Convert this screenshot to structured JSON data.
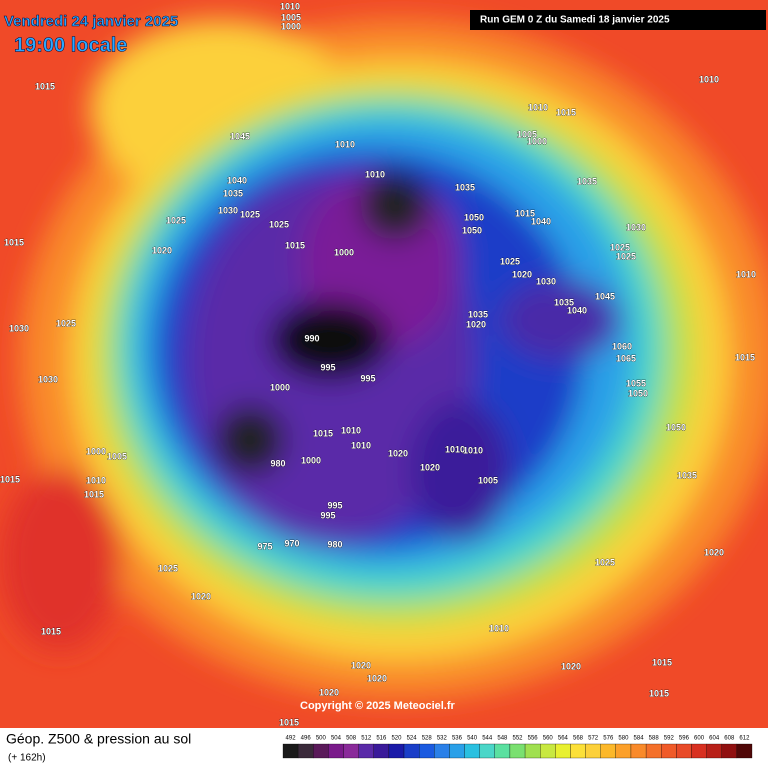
{
  "header": {
    "date": "Vendredi 24 janvier 2025",
    "time": "19:00 locale",
    "run": "Run GEM 0 Z du Samedi 18 janvier 2025"
  },
  "copyright": "Copyright © 2025 Meteociel.fr",
  "legend": {
    "title": "Géop. Z500 & pression au sol",
    "lead": "(+ 162h)",
    "values": [
      492,
      496,
      500,
      504,
      508,
      512,
      516,
      520,
      524,
      528,
      532,
      536,
      540,
      544,
      548,
      552,
      556,
      560,
      564,
      568,
      572,
      576,
      580,
      584,
      588,
      592,
      596,
      600,
      604,
      608,
      612
    ]
  },
  "pressure_labels": [
    "1010",
    "1005",
    "1000",
    "1015",
    "1045",
    "1010",
    "1015",
    "1005",
    "1000",
    "1010",
    "1010",
    "1010",
    "1035",
    "1035",
    "1040",
    "1035",
    "1030",
    "1025",
    "1025",
    "1025",
    "1050",
    "1015",
    "1040",
    "1050",
    "1030",
    "1015",
    "1020",
    "1015",
    "1000",
    "1025",
    "1025",
    "1025",
    "1020",
    "1030",
    "1010",
    "1035",
    "1045",
    "1040",
    "1035",
    "1020",
    "1025",
    "1030",
    "990",
    "1060",
    "1065",
    "1015",
    "995",
    "995",
    "1000",
    "1030",
    "1055",
    "1050",
    "1015",
    "1010",
    "1010",
    "1050",
    "1000",
    "1005",
    "1020",
    "1010",
    "1010",
    "980",
    "1000",
    "1020",
    "1005",
    "1035",
    "1015",
    "1010",
    "1015",
    "995",
    "995",
    "980",
    "975",
    "970",
    "1020",
    "1025",
    "1025",
    "1020",
    "1010",
    "1015",
    "1020",
    "1020",
    "1020",
    "1015",
    "1015",
    "1020",
    "1015"
  ]
}
